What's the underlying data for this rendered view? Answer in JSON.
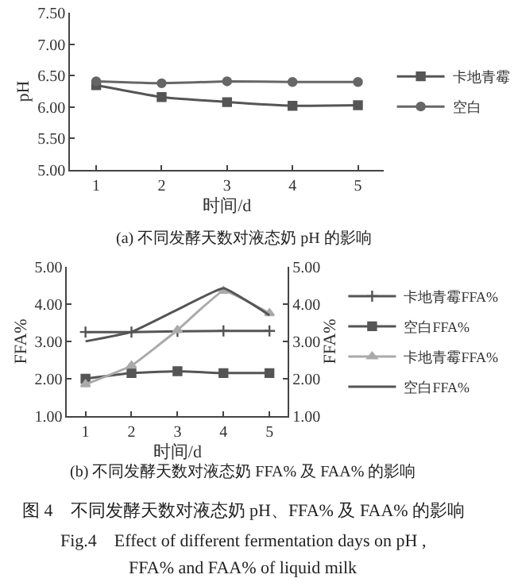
{
  "chart_data": [
    {
      "type": "line",
      "categories": [
        "1",
        "2",
        "3",
        "4",
        "5"
      ],
      "xlabel": "时间/d",
      "ylabel": "pH",
      "ylim": [
        5.0,
        7.5
      ],
      "yticks": [
        {
          "value": 5.0,
          "label": "5.00"
        },
        {
          "value": 5.5,
          "label": "5.50"
        },
        {
          "value": 6.0,
          "label": "6.00"
        },
        {
          "value": 6.5,
          "label": "6.50"
        },
        {
          "value": 7.0,
          "label": "7.00"
        },
        {
          "value": 7.5,
          "label": "7.50"
        }
      ],
      "legend": "right",
      "annotations": [
        "(a) 不同发酵天数对液态奶 pH 的影响"
      ],
      "series": [
        {
          "name": "卡地青霉",
          "color": "#555555",
          "marker": "square",
          "values": [
            6.35,
            6.16,
            6.08,
            6.02,
            6.03
          ]
        },
        {
          "name": "空白",
          "color": "#666666",
          "marker": "circle",
          "values": [
            6.41,
            6.38,
            6.41,
            6.4,
            6.4
          ]
        }
      ]
    },
    {
      "type": "line",
      "categories": [
        "1",
        "2",
        "3",
        "4",
        "5"
      ],
      "xlabel": "时间/d",
      "ylabel": "FFA%",
      "y2label": "FFA%",
      "ylim": [
        1.0,
        5.0
      ],
      "yticks": [
        {
          "value": 1.0,
          "label": "1.00"
        },
        {
          "value": 2.0,
          "label": "2.00"
        },
        {
          "value": 3.0,
          "label": "3.00"
        },
        {
          "value": 4.0,
          "label": "4.00"
        },
        {
          "value": 5.0,
          "label": "5.00"
        }
      ],
      "y2lim": [
        1.0,
        5.0
      ],
      "y2ticks": [
        {
          "value": 1.0,
          "label": "1.00"
        },
        {
          "value": 2.0,
          "label": "2.00"
        },
        {
          "value": 3.0,
          "label": "3.00"
        },
        {
          "value": 4.0,
          "label": "4.00"
        },
        {
          "value": 5.0,
          "label": "5.00"
        }
      ],
      "legend": "right",
      "annotations": [
        "(b) 不同发酵天数对液态奶 FFA% 及 FAA% 的影响",
        "图 4　不同发酵天数对液态奶 pH、FFA% 及 FAA% 的影响",
        "Fig.4　Effect of different fermentation days on pH ,",
        "FFA% and FAA% of liquid milk"
      ],
      "series": [
        {
          "name": "卡地青霉FFA%",
          "color": "#555555",
          "marker": "cross",
          "values": [
            3.25,
            3.25,
            3.27,
            3.28,
            3.28
          ]
        },
        {
          "name": "空白FFA%",
          "color": "#555555",
          "marker": "square",
          "values": [
            2.0,
            2.15,
            2.2,
            2.15,
            2.15
          ]
        },
        {
          "name": "卡地青霉FFA%",
          "color": "#aaaaaa",
          "marker": "triangle",
          "axis": "y2",
          "values": [
            1.85,
            2.35,
            3.3,
            4.35,
            3.75
          ]
        },
        {
          "name": "空白FFA%",
          "color": "#555555",
          "marker": "none",
          "axis": "y2",
          "values": [
            3.0,
            3.25,
            3.85,
            4.42,
            3.7
          ]
        }
      ]
    }
  ]
}
